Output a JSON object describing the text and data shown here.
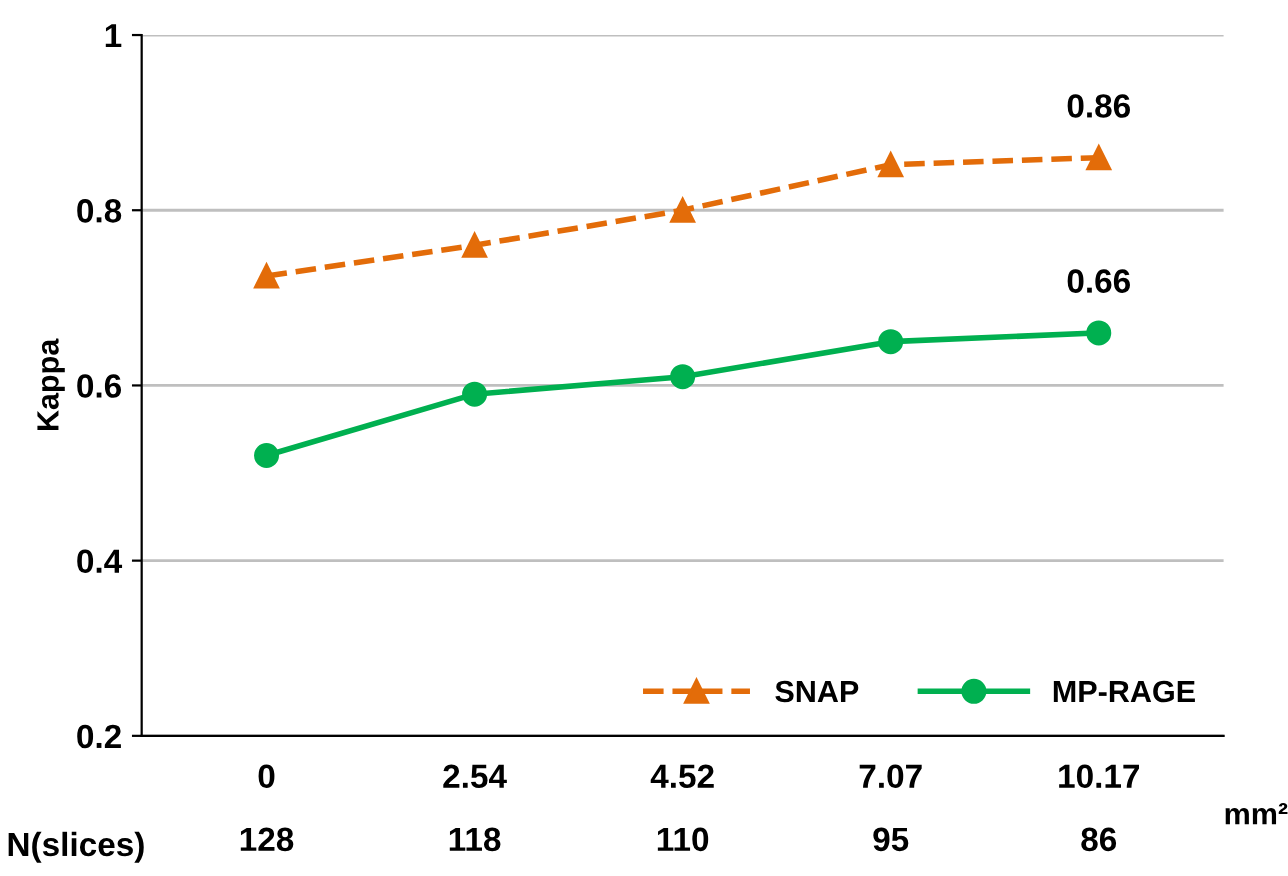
{
  "chart_data": {
    "type": "line",
    "ylabel": "Kappa",
    "xlabel": "mm²",
    "categories": [
      "0",
      "2.54",
      "4.52",
      "7.07",
      "10.17"
    ],
    "series": [
      {
        "name": "SNAP",
        "color": "#e36c09",
        "values": [
          0.725,
          0.76,
          0.8,
          0.852,
          0.86
        ],
        "marker": "triangle",
        "line_style": "dashed",
        "value_labels": [
          null,
          null,
          null,
          null,
          "0.86"
        ]
      },
      {
        "name": "MP-RAGE",
        "color": "#00b050",
        "values": [
          0.52,
          0.59,
          0.61,
          0.65,
          0.66
        ],
        "marker": "circle",
        "line_style": "solid",
        "value_labels": [
          null,
          null,
          null,
          null,
          "0.66"
        ]
      }
    ],
    "ylim": [
      0.2,
      1
    ],
    "yticks": [
      0.2,
      0.4,
      0.6,
      0.8,
      1
    ],
    "grid": "y",
    "legend": "bottom right",
    "annotations": [
      "N(slices)",
      "128",
      "118",
      "110",
      "95",
      "86"
    ]
  }
}
